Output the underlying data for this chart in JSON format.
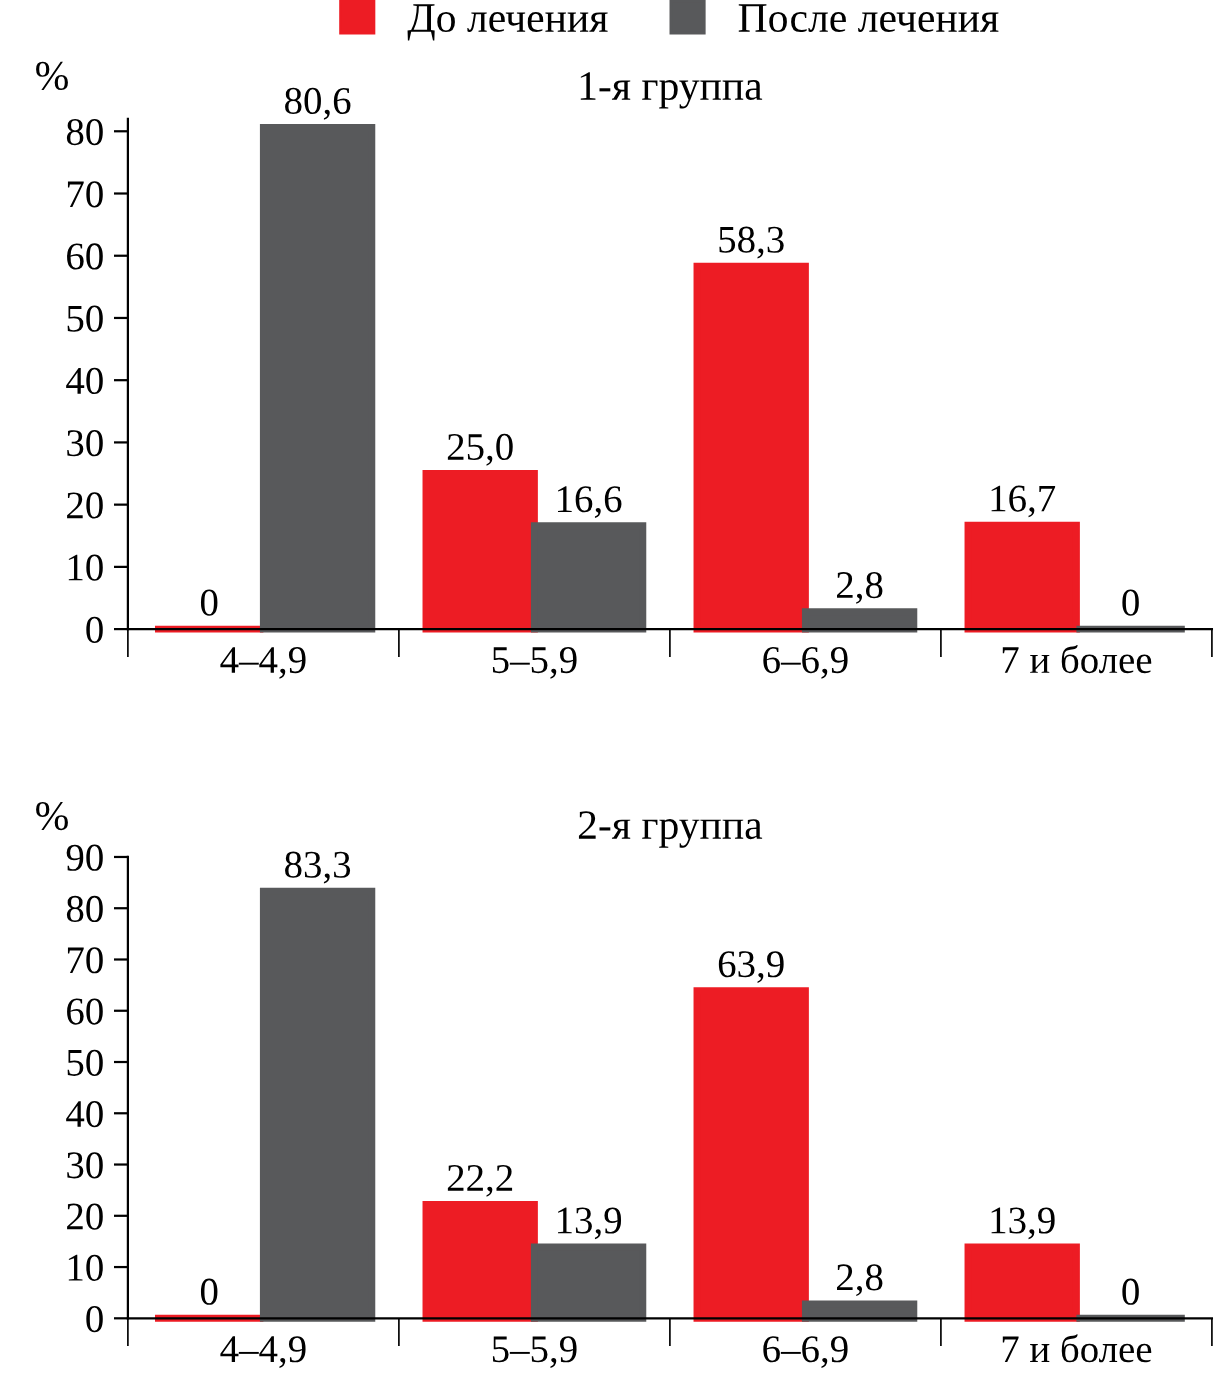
{
  "chart_data": [
    {
      "type": "bar",
      "title": "1-я группа",
      "ylabel": "%",
      "categories": [
        "4–4,9",
        "5–5,9",
        "6–6,9",
        "7 и более"
      ],
      "series": [
        {
          "name": "До лечения",
          "color": "#ed1c24",
          "values": [
            0,
            25.0,
            58.3,
            16.7
          ],
          "value_labels": [
            "0",
            "25,0",
            "58,3",
            "16,7"
          ]
        },
        {
          "name": "После лечения",
          "color": "#58595b",
          "values": [
            80.6,
            16.6,
            2.8,
            0
          ],
          "value_labels": [
            "80,6",
            "16,6",
            "2,8",
            "0"
          ]
        }
      ],
      "ylim": [
        0,
        82
      ],
      "yticks": [
        0,
        10,
        20,
        30,
        40,
        50,
        60,
        70,
        80
      ],
      "grid": false,
      "legend": "top"
    },
    {
      "type": "bar",
      "title": "2-я группа",
      "ylabel": "%",
      "categories": [
        "4–4,9",
        "5–5,9",
        "6–6,9",
        "7 и более"
      ],
      "series": [
        {
          "color": "#ed1c24",
          "values": [
            0,
            22.2,
            63.9,
            13.9
          ],
          "value_labels": [
            "0",
            "22,2",
            "63,9",
            "13,9"
          ]
        },
        {
          "color": "#58595b",
          "values": [
            83.3,
            13.9,
            2.8,
            0
          ],
          "value_labels": [
            "83,3",
            "13,9",
            "2,8",
            "0"
          ]
        }
      ],
      "ylim": [
        0,
        90
      ],
      "yticks": [
        0,
        10,
        20,
        30,
        40,
        50,
        60,
        70,
        80,
        90
      ],
      "grid": false
    }
  ]
}
